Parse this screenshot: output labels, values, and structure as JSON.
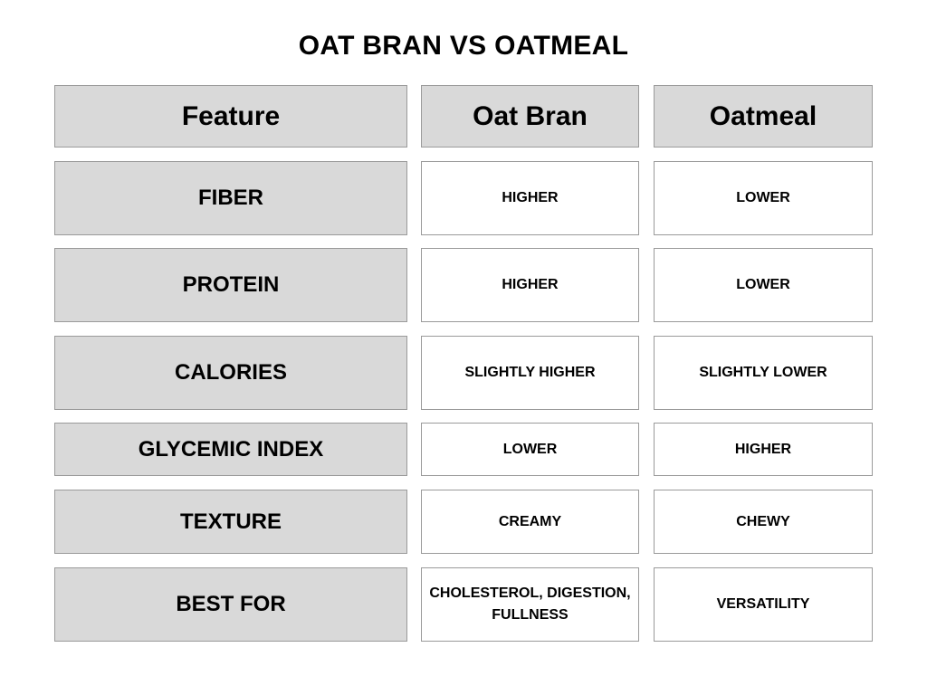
{
  "title": "OAT BRAN VS OATMEAL",
  "headers": [
    "Feature",
    "Oat Bran",
    "Oatmeal"
  ],
  "rows": [
    {
      "feature": "FIBER",
      "oat_bran": "HIGHER",
      "oatmeal": "LOWER"
    },
    {
      "feature": "PROTEIN",
      "oat_bran": "HIGHER",
      "oatmeal": "LOWER"
    },
    {
      "feature": "CALORIES",
      "oat_bran": "SLIGHTLY HIGHER",
      "oatmeal": "SLIGHTLY LOWER"
    },
    {
      "feature": "GLYCEMIC INDEX",
      "oat_bran": "LOWER",
      "oatmeal": "HIGHER"
    },
    {
      "feature": "TEXTURE",
      "oat_bran": "CREAMY",
      "oatmeal": "CHEWY"
    },
    {
      "feature": "BEST FOR",
      "oat_bran": "CHOLESTEROL, DIGESTION, FULLNESS",
      "oatmeal": "VERSATILITY"
    }
  ],
  "colors": {
    "header_fill": "#d9d9d9",
    "value_fill": "#ffffff",
    "border": "#9a9a9a",
    "text": "#000000"
  }
}
